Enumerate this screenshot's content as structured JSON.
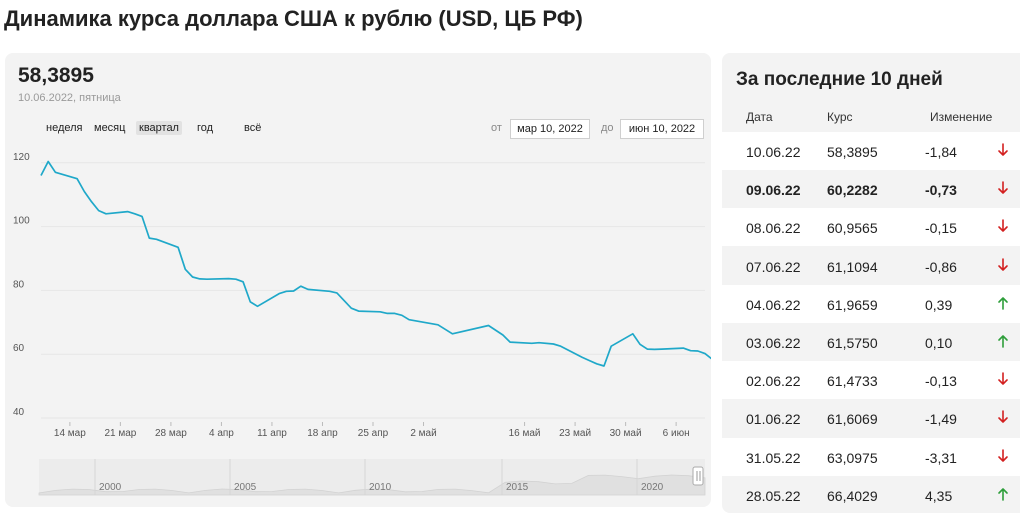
{
  "page": {
    "title": "Динамика курса доллара США к рублю (USD, ЦБ РФ)"
  },
  "summary": {
    "value": "58,3895",
    "date": "10.06.2022, пятница"
  },
  "periods": [
    "неделя",
    "месяц",
    "квартал",
    "год",
    "всё"
  ],
  "active_period": "квартал",
  "range": {
    "from_label": "от",
    "from_value": "мар 10, 2022",
    "to_label": "до",
    "to_value": "июн 10, 2022"
  },
  "colors": {
    "line": "#1fa8c9",
    "up": "#2e9e3a",
    "down": "#d32020"
  },
  "chart_data": {
    "type": "line",
    "title": "",
    "y_ticks": [
      "120",
      "100",
      "80",
      "60",
      "40"
    ],
    "ylim": [
      40,
      124
    ],
    "x_tick_labels": [
      "14 мар",
      "21 мар",
      "28 мар",
      "4 апр",
      "11 апр",
      "18 апр",
      "25 апр",
      "2 май",
      "16 май",
      "23 май",
      "30 май",
      "6 июн"
    ],
    "x_tick_dates": [
      "2022-03-14",
      "2022-03-21",
      "2022-03-28",
      "2022-04-04",
      "2022-04-11",
      "2022-04-18",
      "2022-04-25",
      "2022-05-02",
      "2022-05-16",
      "2022-05-23",
      "2022-05-30",
      "2022-06-06"
    ],
    "xlim": [
      "2022-03-10",
      "2022-06-10"
    ],
    "series": [
      {
        "points": [
          [
            "2022-03-10",
            116.0
          ],
          [
            "2022-03-11",
            120.4
          ],
          [
            "2022-03-12",
            117.0
          ],
          [
            "2022-03-15",
            115.0
          ],
          [
            "2022-03-16",
            111.0
          ],
          [
            "2022-03-17",
            107.8
          ],
          [
            "2022-03-18",
            105.0
          ],
          [
            "2022-03-19",
            104.0
          ],
          [
            "2022-03-22",
            104.7
          ],
          [
            "2022-03-23",
            104.0
          ],
          [
            "2022-03-24",
            103.2
          ],
          [
            "2022-03-25",
            96.4
          ],
          [
            "2022-03-26",
            96.0
          ],
          [
            "2022-03-29",
            93.5
          ],
          [
            "2022-03-30",
            86.6
          ],
          [
            "2022-03-31",
            84.2
          ],
          [
            "2022-04-01",
            83.6
          ],
          [
            "2022-04-02",
            83.5
          ],
          [
            "2022-04-05",
            83.7
          ],
          [
            "2022-04-06",
            83.5
          ],
          [
            "2022-04-07",
            82.7
          ],
          [
            "2022-04-08",
            76.4
          ],
          [
            "2022-04-09",
            75.0
          ],
          [
            "2022-04-12",
            79.0
          ],
          [
            "2022-04-13",
            79.7
          ],
          [
            "2022-04-14",
            79.8
          ],
          [
            "2022-04-15",
            81.3
          ],
          [
            "2022-04-16",
            80.3
          ],
          [
            "2022-04-19",
            79.7
          ],
          [
            "2022-04-20",
            79.2
          ],
          [
            "2022-04-21",
            76.8
          ],
          [
            "2022-04-22",
            74.4
          ],
          [
            "2022-04-23",
            73.5
          ],
          [
            "2022-04-26",
            73.3
          ],
          [
            "2022-04-27",
            72.8
          ],
          [
            "2022-04-28",
            72.8
          ],
          [
            "2022-04-29",
            72.2
          ],
          [
            "2022-04-30",
            70.8
          ],
          [
            "2022-05-04",
            69.2
          ],
          [
            "2022-05-06",
            66.4
          ],
          [
            "2022-05-11",
            69.0
          ],
          [
            "2022-05-13",
            66.0
          ],
          [
            "2022-05-14",
            63.8
          ],
          [
            "2022-05-17",
            63.4
          ],
          [
            "2022-05-18",
            63.6
          ],
          [
            "2022-05-20",
            63.2
          ],
          [
            "2022-05-21",
            62.5
          ],
          [
            "2022-05-24",
            59.0
          ],
          [
            "2022-05-25",
            58.0
          ],
          [
            "2022-05-26",
            57.0
          ],
          [
            "2022-05-27",
            56.3
          ],
          [
            "2022-05-28",
            62.5
          ],
          [
            "2022-05-31",
            66.4
          ],
          [
            "2022-06-01",
            63.1
          ],
          [
            "2022-06-02",
            61.6
          ],
          [
            "2022-06-03",
            61.5
          ],
          [
            "2022-06-04",
            61.6
          ],
          [
            "2022-06-07",
            61.9
          ],
          [
            "2022-06-08",
            61.1
          ],
          [
            "2022-06-09",
            61.0
          ],
          [
            "2022-06-10",
            60.2
          ],
          [
            "2022-06-11",
            58.4
          ]
        ]
      }
    ],
    "navigator_labels": [
      "2000",
      "2005",
      "2010",
      "2015",
      "2020"
    ]
  },
  "table": {
    "title": "За последние 10 дней",
    "headers": [
      "Дата",
      "Курс",
      "Изменение"
    ],
    "rows": [
      {
        "date": "10.06.22",
        "rate": "58,3895",
        "change": "-1,84",
        "dir": "down",
        "bold": false
      },
      {
        "date": "09.06.22",
        "rate": "60,2282",
        "change": "-0,73",
        "dir": "down",
        "bold": true
      },
      {
        "date": "08.06.22",
        "rate": "60,9565",
        "change": "-0,15",
        "dir": "down",
        "bold": false
      },
      {
        "date": "07.06.22",
        "rate": "61,1094",
        "change": "-0,86",
        "dir": "down",
        "bold": false
      },
      {
        "date": "04.06.22",
        "rate": "61,9659",
        "change": "0,39",
        "dir": "up",
        "bold": false
      },
      {
        "date": "03.06.22",
        "rate": "61,5750",
        "change": "0,10",
        "dir": "up",
        "bold": false
      },
      {
        "date": "02.06.22",
        "rate": "61,4733",
        "change": "-0,13",
        "dir": "down",
        "bold": false
      },
      {
        "date": "01.06.22",
        "rate": "61,6069",
        "change": "-1,49",
        "dir": "down",
        "bold": false
      },
      {
        "date": "31.05.22",
        "rate": "63,0975",
        "change": "-3,31",
        "dir": "down",
        "bold": false
      },
      {
        "date": "28.05.22",
        "rate": "66,4029",
        "change": "4,35",
        "dir": "up",
        "bold": false
      }
    ]
  }
}
